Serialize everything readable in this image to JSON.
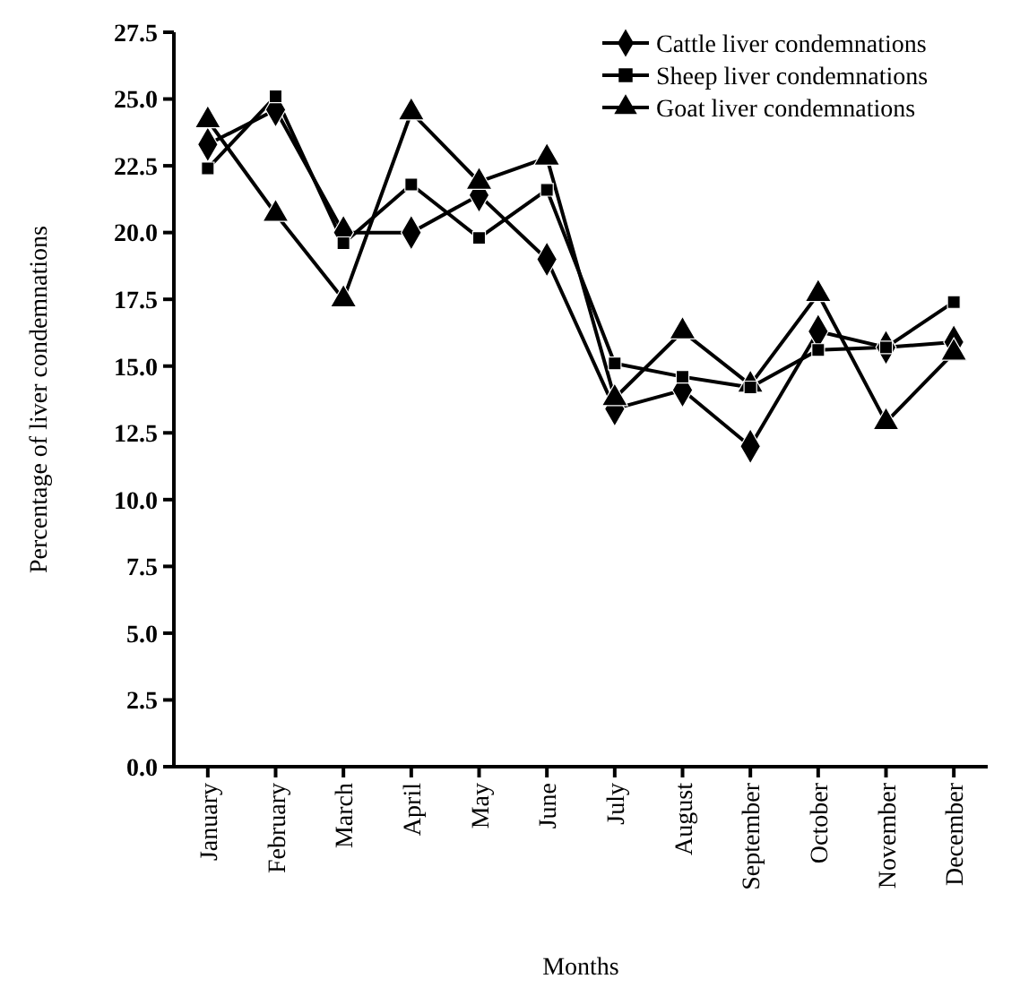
{
  "chart_data": {
    "type": "line",
    "xlabel": "Months",
    "ylabel": "Percentage of liver condemnations",
    "categories": [
      "January",
      "February",
      "March",
      "April",
      "May",
      "June",
      "July",
      "August",
      "September",
      "October",
      "November",
      "December"
    ],
    "series": [
      {
        "name": "Cattle liver condemnations",
        "color": "#000000",
        "marker": "diamond",
        "values": [
          23.3,
          24.6,
          20.0,
          20.0,
          21.4,
          19.0,
          13.4,
          14.1,
          12.0,
          16.3,
          15.7,
          15.9
        ]
      },
      {
        "name": "Sheep liver condemnations",
        "color": "#000000",
        "marker": "square",
        "values": [
          22.4,
          25.1,
          19.6,
          21.8,
          19.8,
          21.6,
          15.1,
          14.6,
          14.2,
          15.6,
          15.7,
          17.4
        ]
      },
      {
        "name": "Goat liver condemnations",
        "color": "#000000",
        "marker": "triangle",
        "values": [
          24.2,
          20.7,
          17.5,
          24.5,
          21.9,
          22.8,
          13.8,
          16.3,
          14.3,
          17.7,
          12.9,
          15.5
        ]
      }
    ],
    "ylim": [
      0,
      27.5
    ],
    "yticks": [
      {
        "value": 0,
        "label": "0.0"
      },
      {
        "value": 2.5,
        "label": "2.5"
      },
      {
        "value": 5,
        "label": "5.0"
      },
      {
        "value": 7.5,
        "label": "7.5"
      },
      {
        "value": 10,
        "label": "10.0"
      },
      {
        "value": 12.5,
        "label": "12.5"
      },
      {
        "value": 15,
        "label": "15.0"
      },
      {
        "value": 17.5,
        "label": "17.5"
      },
      {
        "value": 20,
        "label": "20.0"
      },
      {
        "value": 22.5,
        "label": "22.5"
      },
      {
        "value": 25,
        "label": "25.0"
      },
      {
        "value": 27.5,
        "label": "27.5"
      }
    ],
    "grid": false,
    "legend": "top right",
    "line_style": "solid"
  }
}
